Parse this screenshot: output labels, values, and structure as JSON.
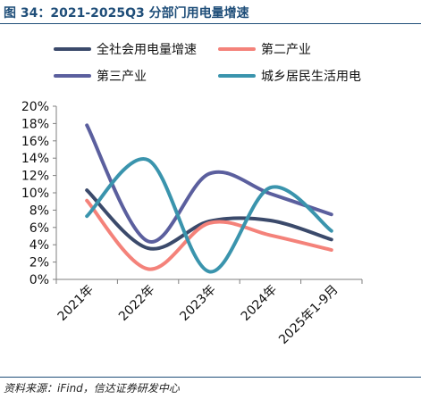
{
  "header": {
    "title": "图 34：2021-2025Q3 分部门用电量增速"
  },
  "footer": {
    "source": "资料来源：iFind，信达证券研发中心"
  },
  "chart_data": {
    "type": "line",
    "title": "",
    "xlabel": "",
    "ylabel": "",
    "ylim": [
      0,
      20
    ],
    "y_tick_step": 2,
    "y_format": "percent",
    "grid": false,
    "legend_position": "top",
    "categories": [
      "2021年",
      "2022年",
      "2023年",
      "2024年",
      "2025年1-9月"
    ],
    "series": [
      {
        "name": "全社会用电量增速",
        "color": "#3b4a6b",
        "values": [
          10.3,
          3.6,
          6.7,
          6.8,
          4.6
        ]
      },
      {
        "name": "第二产业",
        "color": "#f4827a",
        "values": [
          9.1,
          1.2,
          6.5,
          5.1,
          3.4
        ]
      },
      {
        "name": "第三产业",
        "color": "#5b5f9e",
        "values": [
          17.8,
          4.4,
          12.2,
          9.9,
          7.5
        ]
      },
      {
        "name": "城乡居民生活用电",
        "color": "#3a94ad",
        "values": [
          7.3,
          13.8,
          0.9,
          10.6,
          5.6
        ]
      }
    ]
  }
}
